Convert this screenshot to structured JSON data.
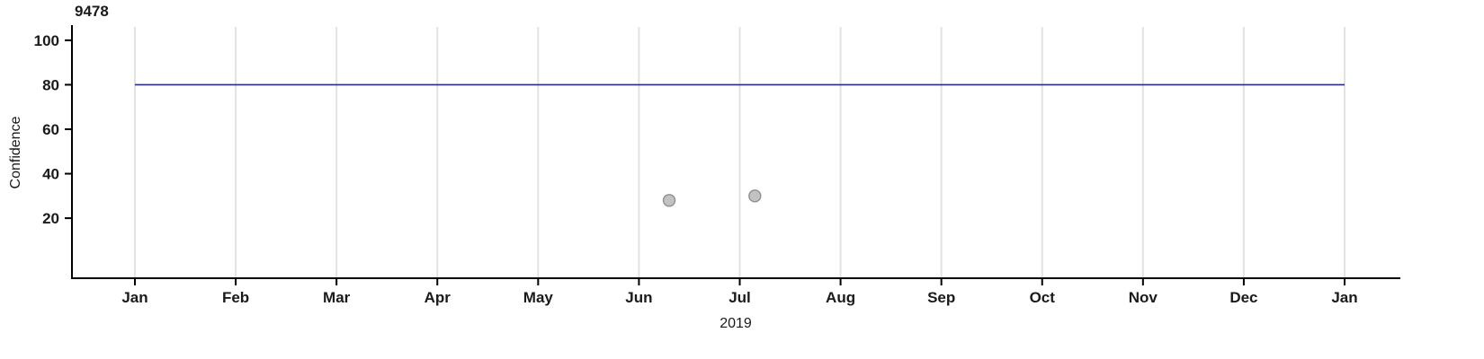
{
  "chart_data": {
    "type": "line",
    "title": "9478",
    "xlabel": "2019",
    "ylabel": "Confidence",
    "x_tick_labels": [
      "Jan",
      "Feb",
      "Mar",
      "Apr",
      "May",
      "Jun",
      "Jul",
      "Aug",
      "Sep",
      "Oct",
      "Nov",
      "Dec",
      "Jan"
    ],
    "y_ticks": [
      20,
      40,
      60,
      80,
      100
    ],
    "ylim": [
      -7,
      106
    ],
    "grid": "vertical-monthly",
    "grid_color": "#e2e2e2",
    "axis_color": "#000000",
    "series": [
      {
        "name": "confidence-line",
        "type": "line",
        "color": "#2a2a85",
        "points": [
          {
            "x_month": 0,
            "y": 80
          },
          {
            "x_month": 12,
            "y": 80
          }
        ]
      }
    ],
    "scatter": {
      "name": "confidence-points",
      "color_fill": "#c2c2c2",
      "color_stroke": "#909090",
      "points": [
        {
          "x_month": 5.3,
          "y": 28
        },
        {
          "x_month": 6.15,
          "y": 30
        }
      ]
    }
  }
}
